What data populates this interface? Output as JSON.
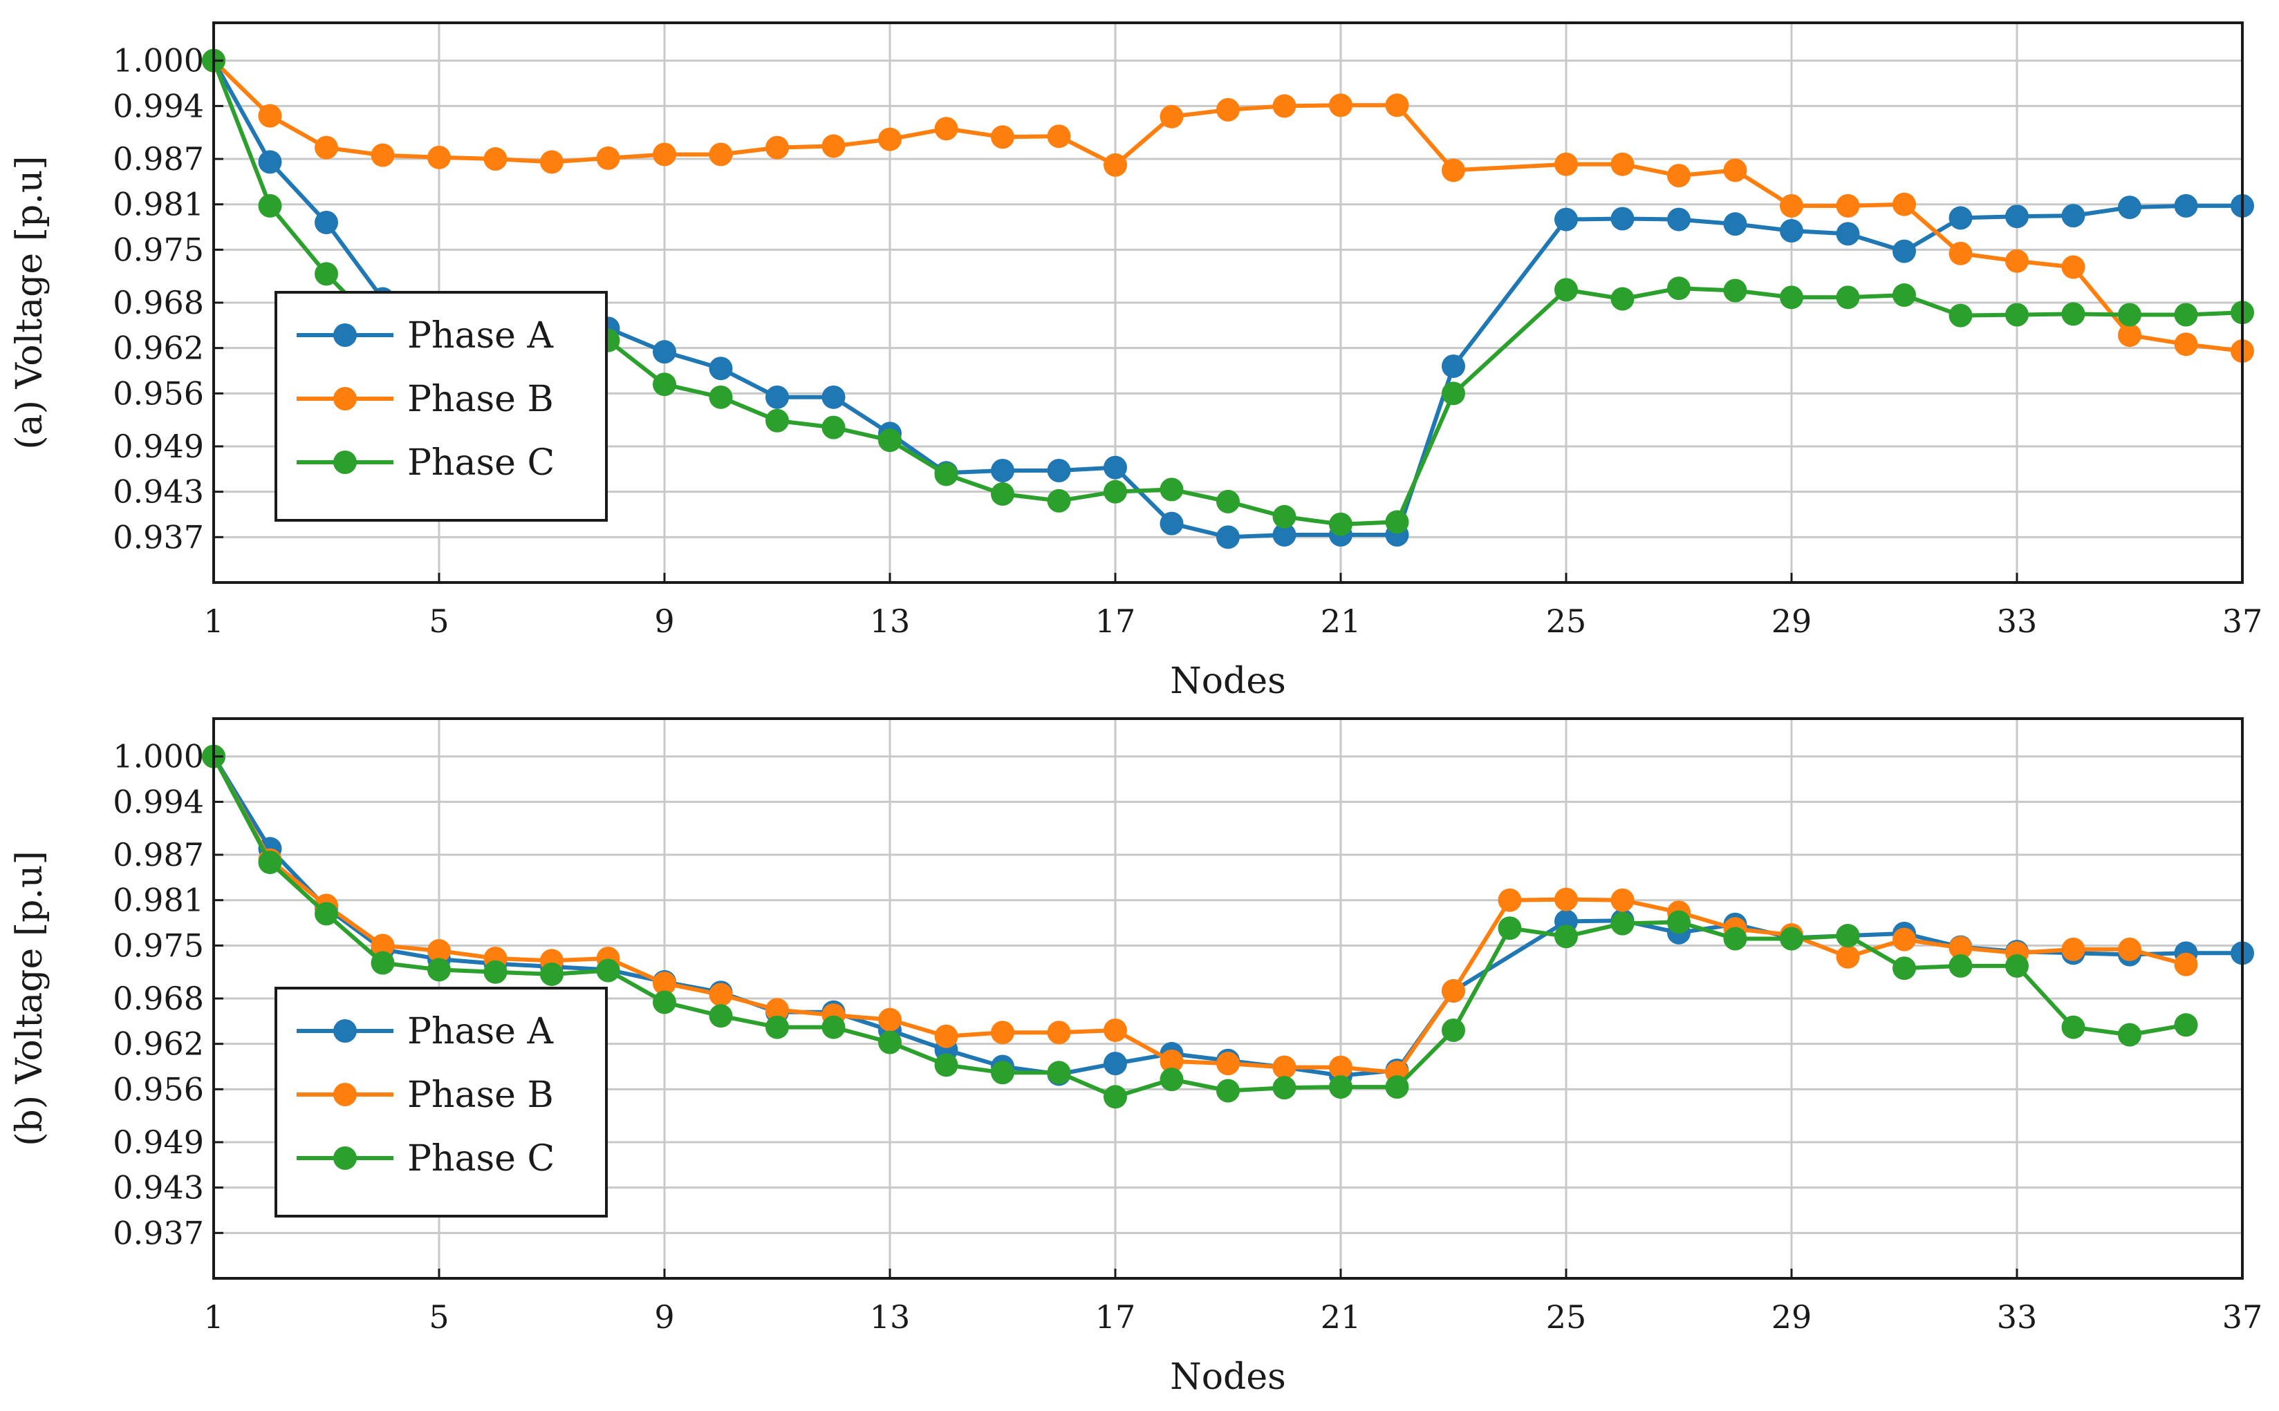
{
  "chart_data": [
    {
      "type": "line",
      "panel": "a",
      "ylabel": "(a) Voltage [p.u]",
      "xlabel": "Nodes",
      "xlim": [
        1,
        37
      ],
      "ylim": [
        0.931,
        1.005
      ],
      "xticks": [
        1,
        5,
        9,
        13,
        17,
        21,
        25,
        29,
        33,
        37
      ],
      "xtick_labels": [
        "1",
        "5",
        "9",
        "13",
        "17",
        "21",
        "25",
        "29",
        "33",
        "37"
      ],
      "yticks": [
        1.0,
        0.994,
        0.987,
        0.981,
        0.975,
        0.968,
        0.962,
        0.956,
        0.949,
        0.943,
        0.937
      ],
      "ytick_labels": [
        "1.000",
        "0.994",
        "0.987",
        "0.981",
        "0.975",
        "0.968",
        "0.962",
        "0.956",
        "0.949",
        "0.943",
        "0.937"
      ],
      "grid": true,
      "legend_position": "bottom-left",
      "series": [
        {
          "name": "Phase A",
          "color": "#1f77b4",
          "x": [
            1,
            2,
            3,
            4,
            5,
            6,
            7,
            8,
            9,
            10,
            11,
            12,
            13,
            14,
            15,
            16,
            17,
            18,
            19,
            20,
            21,
            22,
            23,
            25,
            26,
            27,
            28,
            29,
            30,
            31,
            32,
            33,
            34,
            35,
            36,
            37
          ],
          "y": [
            1.0,
            0.9866,
            0.9786,
            0.9685,
            0.9668,
            0.9655,
            0.965,
            0.9646,
            0.9615,
            0.9593,
            0.9555,
            0.9555,
            0.9507,
            0.9455,
            0.9458,
            0.9458,
            0.9462,
            0.9388,
            0.937,
            0.9373,
            0.9373,
            0.9373,
            0.9596,
            0.979,
            0.9791,
            0.979,
            0.9784,
            0.9775,
            0.9771,
            0.9748,
            0.9792,
            0.9794,
            0.9795,
            0.9806,
            0.9808,
            0.9808
          ]
        },
        {
          "name": "Phase B",
          "color": "#ff7f0e",
          "x": [
            1,
            2,
            3,
            4,
            5,
            6,
            7,
            8,
            9,
            10,
            11,
            12,
            13,
            14,
            15,
            16,
            17,
            18,
            19,
            20,
            21,
            22,
            23,
            25,
            26,
            27,
            28,
            29,
            30,
            31,
            32,
            33,
            34,
            35,
            36,
            37
          ],
          "y": [
            1.0,
            0.9927,
            0.9885,
            0.9875,
            0.9872,
            0.987,
            0.9866,
            0.9871,
            0.9876,
            0.9876,
            0.9885,
            0.9887,
            0.9896,
            0.991,
            0.9899,
            0.99,
            0.9862,
            0.9926,
            0.9935,
            0.994,
            0.9941,
            0.9941,
            0.9855,
            0.9863,
            0.9863,
            0.9848,
            0.9855,
            0.9808,
            0.9808,
            0.981,
            0.9745,
            0.9735,
            0.9727,
            0.9637,
            0.9625,
            0.9616
          ]
        },
        {
          "name": "Phase C",
          "color": "#2ca02c",
          "x": [
            1,
            2,
            3,
            4,
            5,
            6,
            7,
            8,
            9,
            10,
            11,
            12,
            13,
            14,
            15,
            16,
            17,
            18,
            19,
            20,
            21,
            22,
            23,
            25,
            26,
            27,
            28,
            29,
            30,
            31,
            32,
            33,
            34,
            35,
            36,
            37
          ],
          "y": [
            1.0,
            0.9808,
            0.9718,
            0.9642,
            0.9632,
            0.963,
            0.9628,
            0.963,
            0.9572,
            0.9555,
            0.9524,
            0.9515,
            0.9498,
            0.9453,
            0.9427,
            0.9418,
            0.943,
            0.9433,
            0.9417,
            0.9397,
            0.9387,
            0.939,
            0.956,
            0.9697,
            0.9685,
            0.9699,
            0.9696,
            0.9687,
            0.9687,
            0.969,
            0.9663,
            0.9664,
            0.9665,
            0.9664,
            0.9664,
            0.9667
          ]
        }
      ]
    },
    {
      "type": "line",
      "panel": "b",
      "ylabel": "(b) Voltage [p.u]",
      "xlabel": "Nodes",
      "xlim": [
        1,
        37
      ],
      "ylim": [
        0.931,
        1.005
      ],
      "xticks": [
        1,
        5,
        9,
        13,
        17,
        21,
        25,
        29,
        33,
        37
      ],
      "xtick_labels": [
        "1",
        "5",
        "9",
        "13",
        "17",
        "21",
        "25",
        "29",
        "33",
        "37"
      ],
      "yticks": [
        1.0,
        0.994,
        0.987,
        0.981,
        0.975,
        0.968,
        0.962,
        0.956,
        0.949,
        0.943,
        0.937
      ],
      "ytick_labels": [
        "1.000",
        "0.994",
        "0.987",
        "0.981",
        "0.975",
        "0.968",
        "0.962",
        "0.956",
        "0.949",
        "0.943",
        "0.937"
      ],
      "grid": true,
      "legend_position": "bottom-left",
      "series": [
        {
          "name": "Phase A",
          "color": "#1f77b4",
          "x": [
            1,
            2,
            3,
            4,
            5,
            6,
            7,
            8,
            9,
            10,
            11,
            12,
            13,
            14,
            15,
            16,
            17,
            18,
            19,
            20,
            21,
            22,
            23,
            25,
            26,
            27,
            28,
            29,
            30,
            31,
            32,
            33,
            34,
            35,
            36,
            37
          ],
          "y": [
            1.0,
            0.9878,
            0.98,
            0.9745,
            0.9732,
            0.9726,
            0.9722,
            0.9718,
            0.9702,
            0.9688,
            0.9662,
            0.9662,
            0.9638,
            0.9612,
            0.959,
            0.958,
            0.9594,
            0.9607,
            0.9598,
            0.9589,
            0.9578,
            0.9585,
            0.969,
            0.9782,
            0.9783,
            0.9767,
            0.9778,
            0.976,
            0.9763,
            0.9766,
            0.9748,
            0.9742,
            0.974,
            0.9738,
            0.974,
            0.974
          ]
        },
        {
          "name": "Phase B",
          "color": "#ff7f0e",
          "x": [
            1,
            2,
            3,
            4,
            5,
            6,
            7,
            8,
            9,
            10,
            11,
            12,
            13,
            14,
            15,
            16,
            17,
            18,
            19,
            20,
            21,
            22,
            23,
            24,
            25,
            26,
            27,
            28,
            29,
            30,
            31,
            32,
            33,
            34,
            35,
            36
          ],
          "y": [
            1.0,
            0.9863,
            0.9803,
            0.975,
            0.9743,
            0.9733,
            0.973,
            0.9733,
            0.97,
            0.9685,
            0.9665,
            0.9658,
            0.9652,
            0.963,
            0.9635,
            0.9635,
            0.9638,
            0.9597,
            0.9594,
            0.9589,
            0.9589,
            0.9582,
            0.969,
            0.981,
            0.9811,
            0.981,
            0.9794,
            0.9772,
            0.9764,
            0.9735,
            0.9758,
            0.9747,
            0.974,
            0.9745,
            0.9745,
            0.9725
          ]
        },
        {
          "name": "Phase C",
          "color": "#2ca02c",
          "x": [
            1,
            2,
            3,
            4,
            5,
            6,
            7,
            8,
            9,
            10,
            11,
            12,
            13,
            14,
            15,
            16,
            17,
            18,
            19,
            20,
            21,
            22,
            23,
            24,
            25,
            26,
            27,
            28,
            29,
            30,
            31,
            32,
            33,
            34,
            35,
            36
          ],
          "y": [
            1.0,
            0.986,
            0.9792,
            0.9727,
            0.9718,
            0.9715,
            0.9712,
            0.9717,
            0.9675,
            0.9657,
            0.9642,
            0.9642,
            0.9622,
            0.9592,
            0.9582,
            0.9582,
            0.955,
            0.9573,
            0.9558,
            0.9562,
            0.9563,
            0.9563,
            0.9638,
            0.9773,
            0.9762,
            0.9779,
            0.9781,
            0.9759,
            0.9759,
            0.9763,
            0.972,
            0.9723,
            0.9723,
            0.9642,
            0.9632,
            0.9645
          ]
        }
      ]
    }
  ]
}
